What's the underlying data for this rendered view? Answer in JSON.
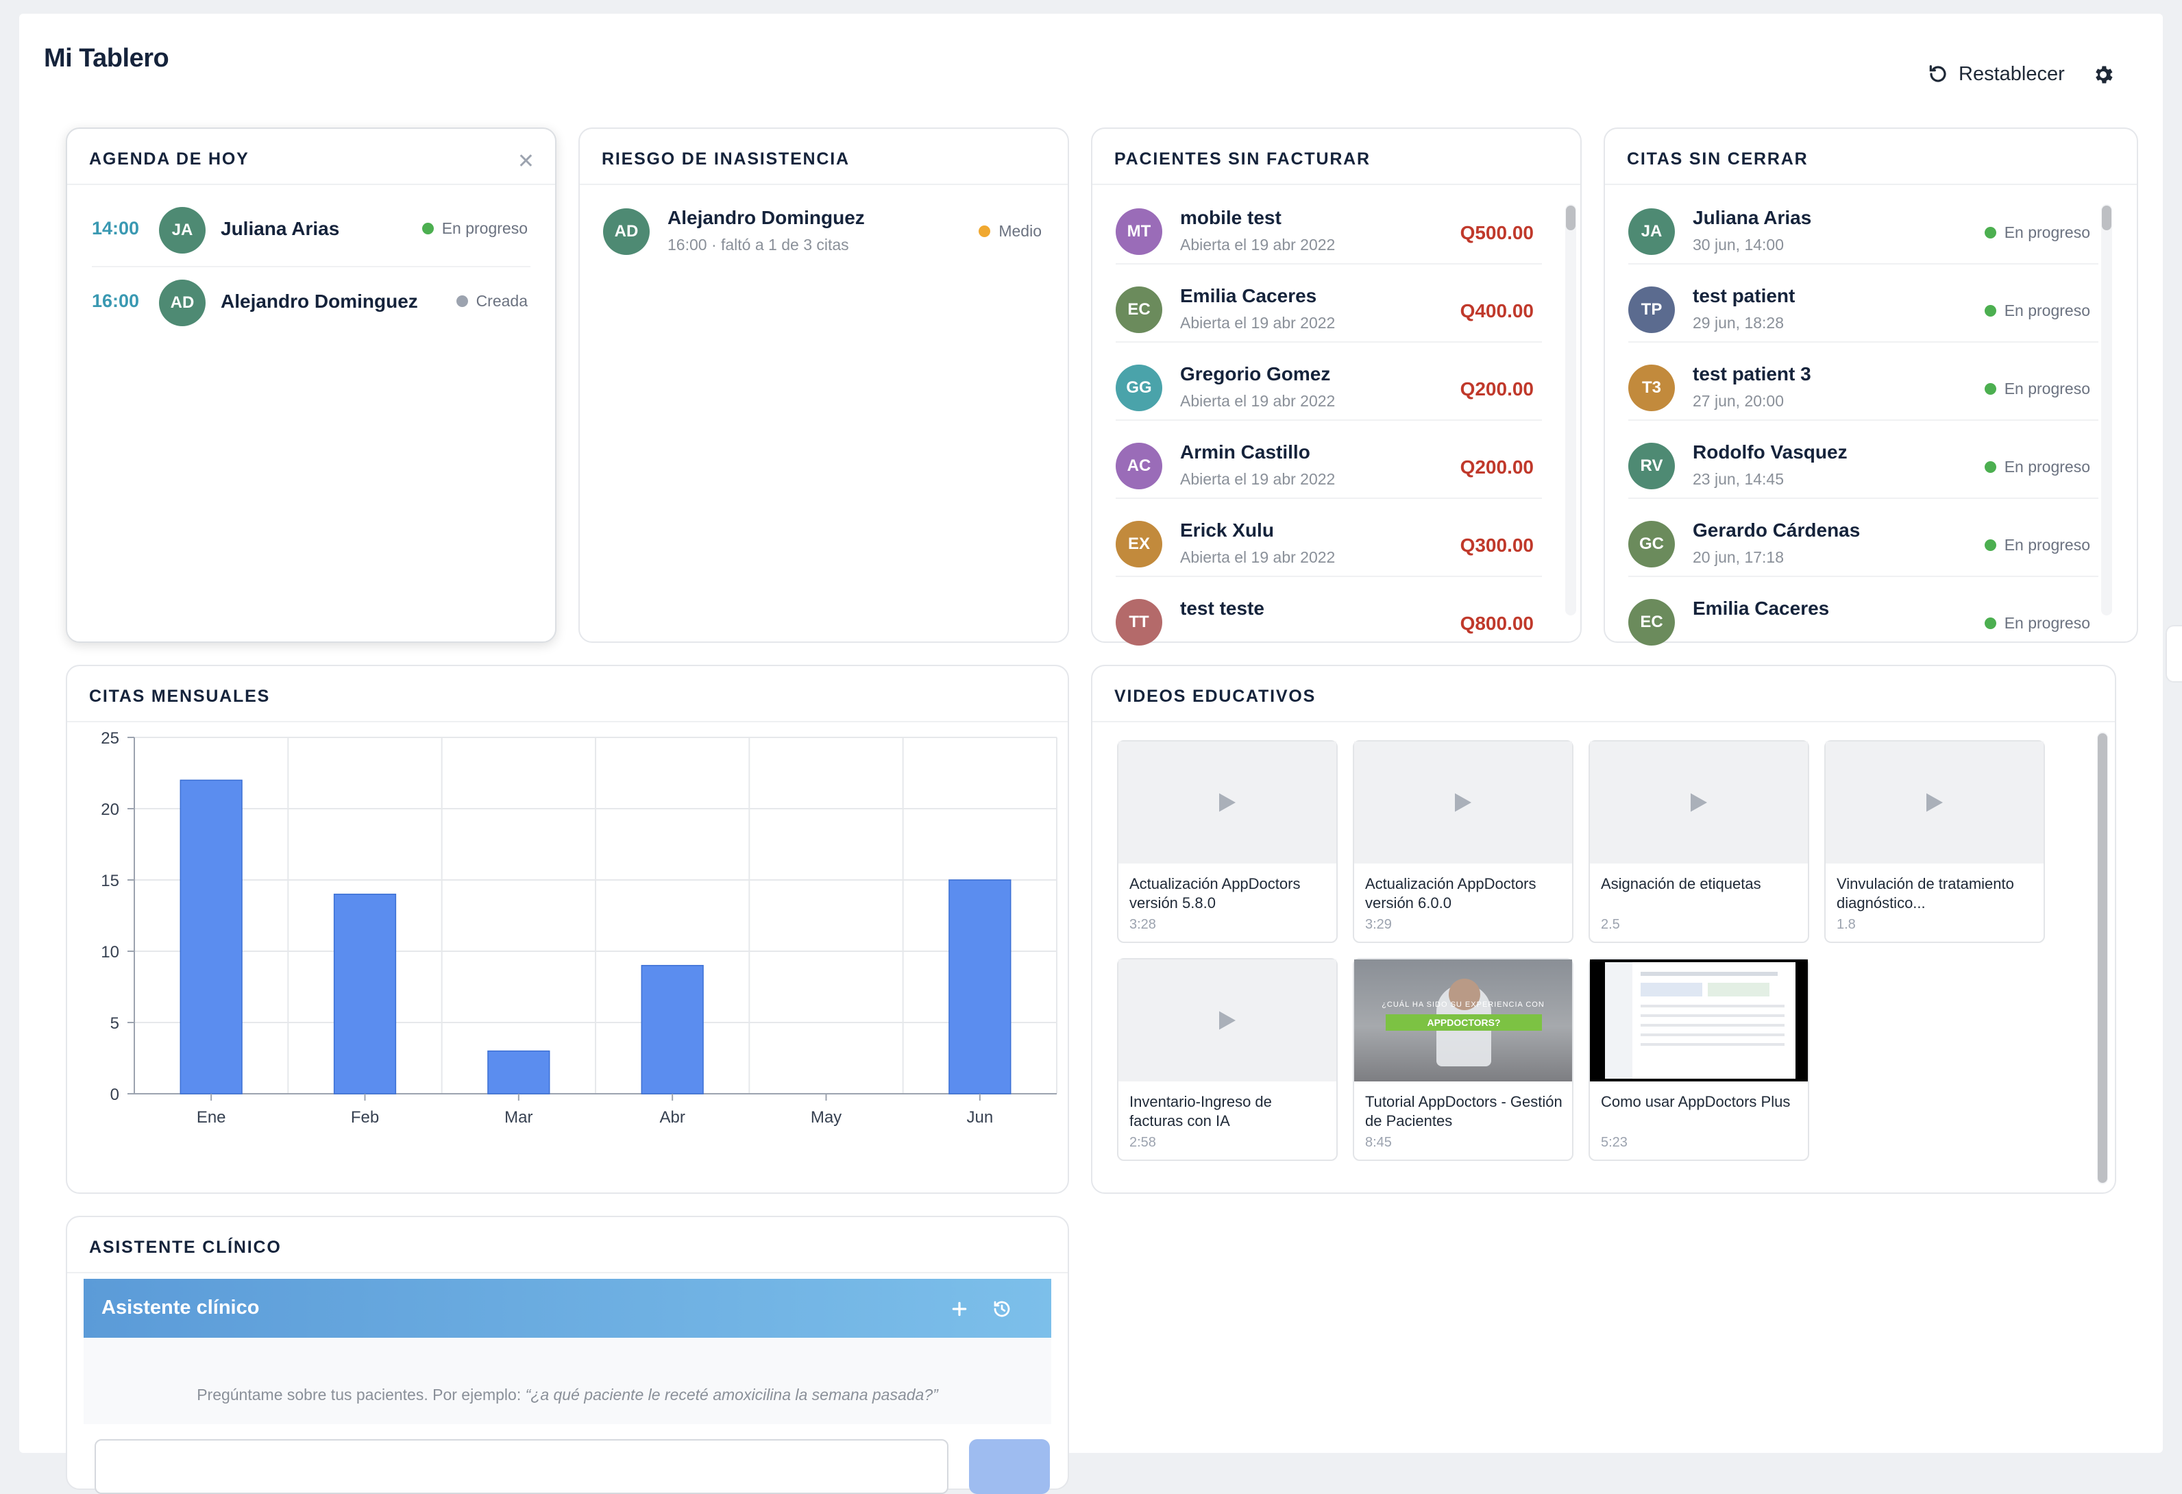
{
  "header": {
    "title": "Mi Tablero",
    "reset_label": "Restablecer",
    "reset_icon": "refresh-icon",
    "settings_icon": "gear-icon"
  },
  "agenda": {
    "title": "AGENDA DE HOY",
    "items": [
      {
        "time": "14:00",
        "initials": "JA",
        "name": "Juliana Arias",
        "status": "En progreso",
        "status_color": "#4caf50",
        "avatar_color": "#4e8a73"
      },
      {
        "time": "16:00",
        "initials": "AD",
        "name": "Alejandro Dominguez",
        "status": "Creada",
        "status_color": "#9ca3af",
        "avatar_color": "#4e8a73"
      }
    ]
  },
  "riesgo": {
    "title": "RIESGO DE INASISTENCIA",
    "items": [
      {
        "initials": "AD",
        "name": "Alejandro Dominguez",
        "detail": "16:00 · faltó a 1 de 3 citas",
        "level": "Medio",
        "level_color": "#f0a830",
        "avatar_color": "#4e8a73"
      }
    ]
  },
  "facturar": {
    "title": "PACIENTES SIN FACTURAR",
    "items": [
      {
        "initials": "MT",
        "name": "mobile test",
        "detail": "Abierta el 19 abr 2022",
        "amount": "Q500.00",
        "avatar_color": "#9a6cb8"
      },
      {
        "initials": "EC",
        "name": "Emilia Caceres",
        "detail": "Abierta el 19 abr 2022",
        "amount": "Q400.00",
        "avatar_color": "#6b8b5c"
      },
      {
        "initials": "GG",
        "name": "Gregorio Gomez",
        "detail": "Abierta el 19 abr 2022",
        "amount": "Q200.00",
        "avatar_color": "#4aa3aa"
      },
      {
        "initials": "AC",
        "name": "Armin Castillo",
        "detail": "Abierta el 19 abr 2022",
        "amount": "Q200.00",
        "avatar_color": "#9a6cb8"
      },
      {
        "initials": "EX",
        "name": "Erick Xulu",
        "detail": "Abierta el 19 abr 2022",
        "amount": "Q300.00",
        "avatar_color": "#c28a3c"
      },
      {
        "initials": "TT",
        "name": "test teste",
        "detail": "",
        "amount": "Q800.00",
        "avatar_color": "#b46a6a"
      }
    ]
  },
  "citas_sin_cerrar": {
    "title": "CITAS SIN CERRAR",
    "items": [
      {
        "initials": "JA",
        "name": "Juliana Arias",
        "detail": "30 jun, 14:00",
        "status": "En progreso",
        "avatar_color": "#4e8a73"
      },
      {
        "initials": "TP",
        "name": "test patient",
        "detail": "29 jun, 18:28",
        "status": "En progreso",
        "avatar_color": "#5b6b8f"
      },
      {
        "initials": "T3",
        "name": "test patient 3",
        "detail": "27 jun, 20:00",
        "status": "En progreso",
        "avatar_color": "#c28a3c"
      },
      {
        "initials": "RV",
        "name": "Rodolfo Vasquez",
        "detail": "23 jun, 14:45",
        "status": "En progreso",
        "avatar_color": "#4e8a73"
      },
      {
        "initials": "GC",
        "name": "Gerardo Cárdenas",
        "detail": "20 jun, 17:18",
        "status": "En progreso",
        "avatar_color": "#6b8b5c"
      },
      {
        "initials": "EC",
        "name": "Emilia Caceres",
        "detail": "",
        "status": "En progreso",
        "avatar_color": "#6b8b5c"
      }
    ]
  },
  "citas_mensuales": {
    "title": "CITAS MENSUALES"
  },
  "chart_data": {
    "type": "bar",
    "categories": [
      "Ene",
      "Feb",
      "Mar",
      "Abr",
      "May",
      "Jun"
    ],
    "values": [
      22,
      14,
      3,
      9,
      0,
      15
    ],
    "ylim": [
      0,
      25
    ],
    "yticks": [
      0,
      5,
      10,
      15,
      20,
      25
    ],
    "grid": true,
    "bar_color": "#5b8def",
    "title": "CITAS MENSUALES",
    "xlabel": "",
    "ylabel": ""
  },
  "videos": {
    "title": "VIDEOS EDUCATIVOS",
    "items": [
      {
        "title": "Actualización AppDoctors versión 5.8.0",
        "duration": "3:28",
        "thumb": "placeholder"
      },
      {
        "title": "Actualización AppDoctors versión 6.0.0",
        "duration": "3:29",
        "thumb": "placeholder"
      },
      {
        "title": "Asignación de etiquetas",
        "duration": "2.5",
        "thumb": "placeholder"
      },
      {
        "title": "Vinvulación de tratamiento diagnóstico...",
        "duration": "1.8",
        "thumb": "placeholder"
      },
      {
        "title": "Inventario-Ingreso de facturas con IA",
        "duration": "2:58",
        "thumb": "placeholder"
      },
      {
        "title": "Tutorial AppDoctors - Gestión de Pacientes",
        "duration": "8:45",
        "thumb": "photo",
        "overlay_line1": "¿CUÁL HA SIDO SU EXPERIENCIA CON",
        "overlay_line2": "APPDOCTORS?"
      },
      {
        "title": "Como usar AppDoctors Plus",
        "duration": "5:23",
        "thumb": "screenshot"
      }
    ]
  },
  "asistente": {
    "title": "ASISTENTE CLÍNICO",
    "bar_title": "Asistente clínico",
    "hint": "Pregúntame sobre tus pacientes. Por ejemplo: ",
    "hint_example": "“¿a qué paciente le receté amoxicilina la semana pasada?”",
    "add_icon": "plus-icon",
    "history_icon": "history-icon"
  }
}
